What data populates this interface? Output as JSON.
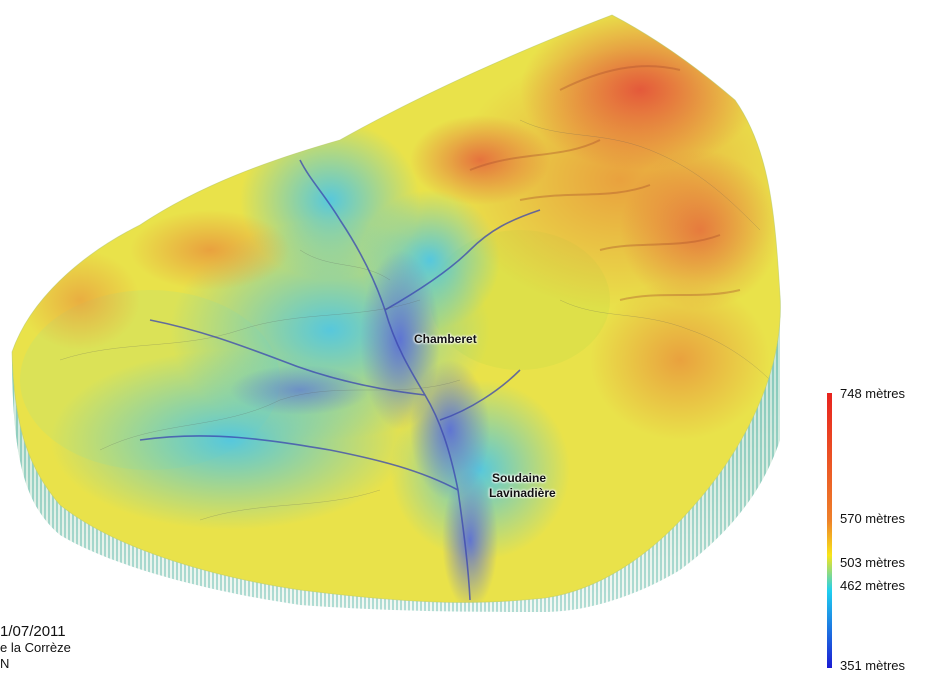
{
  "map": {
    "places": [
      {
        "label": "Chamberet"
      },
      {
        "label": "Soudaine"
      },
      {
        "label": "Lavinadière"
      }
    ]
  },
  "legend": {
    "labels": [
      "748 mètres",
      "570 mètres",
      "503 mètres",
      "462 mètres",
      "351 mètres"
    ],
    "colors": [
      "#e8231e",
      "#ee7f2a",
      "#f7e51a",
      "#1fcff0",
      "#1b1bd3"
    ]
  },
  "credits": {
    "line1": "1/07/2011",
    "line2": "e la Corrèze",
    "line3": "N"
  }
}
